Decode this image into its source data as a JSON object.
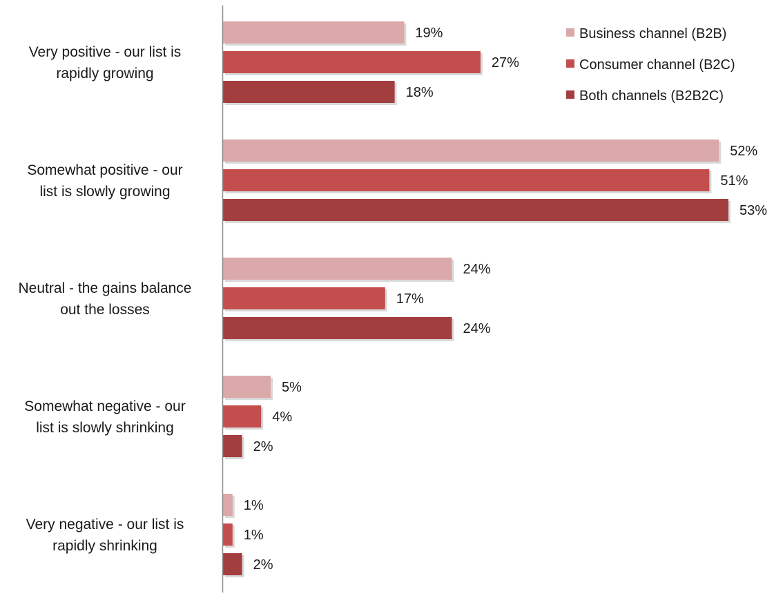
{
  "chart_data": {
    "type": "bar",
    "orientation": "horizontal",
    "categories": [
      [
        "Very positive - our list is",
        "rapidly growing"
      ],
      [
        "Somewhat positive - our",
        "list is slowly growing"
      ],
      [
        "Neutral - the gains balance",
        "out the losses"
      ],
      [
        "Somewhat negative - our",
        "list is slowly shrinking"
      ],
      [
        "Very negative - our list is",
        "rapidly shrinking"
      ]
    ],
    "series": [
      {
        "name": "Business channel (B2B)",
        "color": "#dba9aa",
        "values": [
          19,
          52,
          24,
          5,
          1
        ]
      },
      {
        "name": "Consumer channel (B2C)",
        "color": "#c24f4e",
        "values": [
          27,
          51,
          17,
          4,
          1
        ]
      },
      {
        "name": "Both channels (B2B2C)",
        "color": "#a23f3e",
        "values": [
          18,
          53,
          24,
          2,
          2
        ]
      }
    ],
    "value_suffix": "%",
    "xlim": [
      0,
      53
    ],
    "grid": false,
    "legend_position": "top-right",
    "title": "",
    "xlabel": "",
    "ylabel": ""
  }
}
